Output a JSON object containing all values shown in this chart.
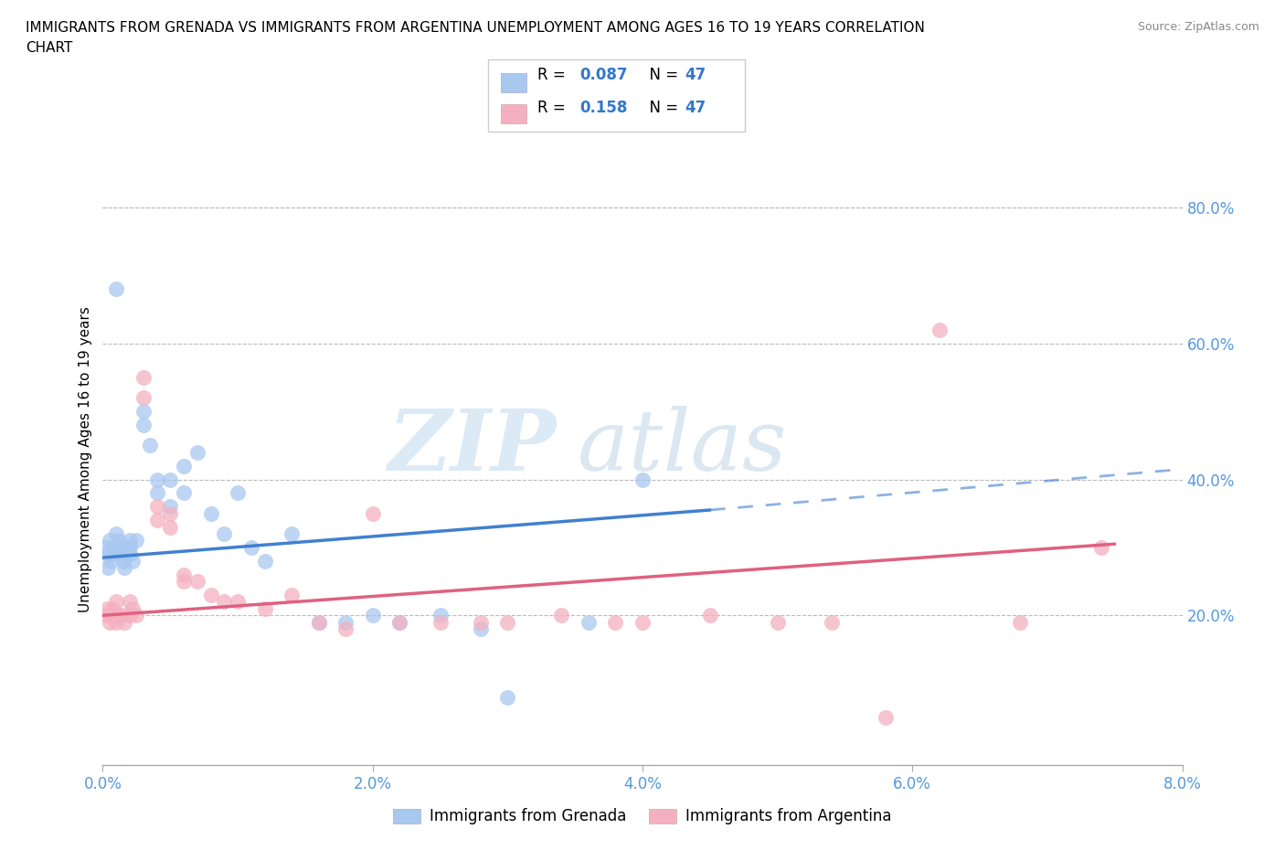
{
  "title_line1": "IMMIGRANTS FROM GRENADA VS IMMIGRANTS FROM ARGENTINA UNEMPLOYMENT AMONG AGES 16 TO 19 YEARS CORRELATION",
  "title_line2": "CHART",
  "source": "Source: ZipAtlas.com",
  "ylabel": "Unemployment Among Ages 16 to 19 years",
  "xlim": [
    0.0,
    0.08
  ],
  "ylim": [
    -0.02,
    0.88
  ],
  "xticks": [
    0.0,
    0.02,
    0.04,
    0.06,
    0.08
  ],
  "xticklabels": [
    "0.0%",
    "2.0%",
    "4.0%",
    "6.0%",
    "8.0%"
  ],
  "yticks": [
    0.2,
    0.4,
    0.6,
    0.8
  ],
  "yticklabels": [
    "20.0%",
    "40.0%",
    "60.0%",
    "80.0%"
  ],
  "R_grenada": 0.087,
  "N_grenada": 47,
  "R_argentina": 0.158,
  "N_argentina": 47,
  "color_grenada": "#a8c8f0",
  "color_argentina": "#f4b0c0",
  "trendline_grenada": "#4080d0",
  "trendline_argentina": "#e06080",
  "grid_color": "#bbbbbb",
  "legend_label_grenada": "Immigrants from Grenada",
  "legend_label_argentina": "Immigrants from Argentina",
  "scatter_grenada_x": [
    0.0002,
    0.0003,
    0.0004,
    0.0005,
    0.0006,
    0.0007,
    0.0008,
    0.001,
    0.001,
    0.001,
    0.0012,
    0.0013,
    0.0014,
    0.0015,
    0.0016,
    0.0017,
    0.0018,
    0.002,
    0.002,
    0.002,
    0.0022,
    0.0025,
    0.003,
    0.003,
    0.0035,
    0.004,
    0.004,
    0.005,
    0.005,
    0.006,
    0.006,
    0.007,
    0.008,
    0.009,
    0.01,
    0.011,
    0.012,
    0.014,
    0.016,
    0.018,
    0.02,
    0.022,
    0.025,
    0.028,
    0.03,
    0.036,
    0.04
  ],
  "scatter_grenada_y": [
    0.3,
    0.29,
    0.27,
    0.31,
    0.28,
    0.3,
    0.29,
    0.68,
    0.32,
    0.3,
    0.31,
    0.29,
    0.3,
    0.28,
    0.27,
    0.29,
    0.3,
    0.31,
    0.29,
    0.3,
    0.28,
    0.31,
    0.5,
    0.48,
    0.45,
    0.4,
    0.38,
    0.4,
    0.36,
    0.42,
    0.38,
    0.44,
    0.35,
    0.32,
    0.38,
    0.3,
    0.28,
    0.32,
    0.19,
    0.19,
    0.2,
    0.19,
    0.2,
    0.18,
    0.08,
    0.19,
    0.4
  ],
  "scatter_argentina_x": [
    0.0002,
    0.0003,
    0.0005,
    0.0006,
    0.0007,
    0.0008,
    0.001,
    0.001,
    0.001,
    0.0012,
    0.0014,
    0.0016,
    0.002,
    0.002,
    0.0022,
    0.0025,
    0.003,
    0.003,
    0.004,
    0.004,
    0.005,
    0.005,
    0.006,
    0.006,
    0.007,
    0.008,
    0.009,
    0.01,
    0.012,
    0.014,
    0.016,
    0.018,
    0.02,
    0.022,
    0.025,
    0.028,
    0.03,
    0.034,
    0.038,
    0.04,
    0.045,
    0.05,
    0.054,
    0.058,
    0.062,
    0.068,
    0.074
  ],
  "scatter_argentina_y": [
    0.2,
    0.21,
    0.19,
    0.2,
    0.21,
    0.2,
    0.22,
    0.2,
    0.19,
    0.2,
    0.2,
    0.19,
    0.22,
    0.2,
    0.21,
    0.2,
    0.55,
    0.52,
    0.36,
    0.34,
    0.35,
    0.33,
    0.25,
    0.26,
    0.25,
    0.23,
    0.22,
    0.22,
    0.21,
    0.23,
    0.19,
    0.18,
    0.35,
    0.19,
    0.19,
    0.19,
    0.19,
    0.2,
    0.19,
    0.19,
    0.2,
    0.19,
    0.19,
    0.05,
    0.62,
    0.19,
    0.3
  ],
  "trendline_grenada_x0": 0.0,
  "trendline_grenada_y0": 0.285,
  "trendline_grenada_x1": 0.045,
  "trendline_grenada_y1": 0.355,
  "trendline_grenada_dash_x1": 0.08,
  "trendline_grenada_dash_y1": 0.415,
  "trendline_argentina_x0": 0.0,
  "trendline_argentina_y0": 0.2,
  "trendline_argentina_x1": 0.075,
  "trendline_argentina_y1": 0.305
}
